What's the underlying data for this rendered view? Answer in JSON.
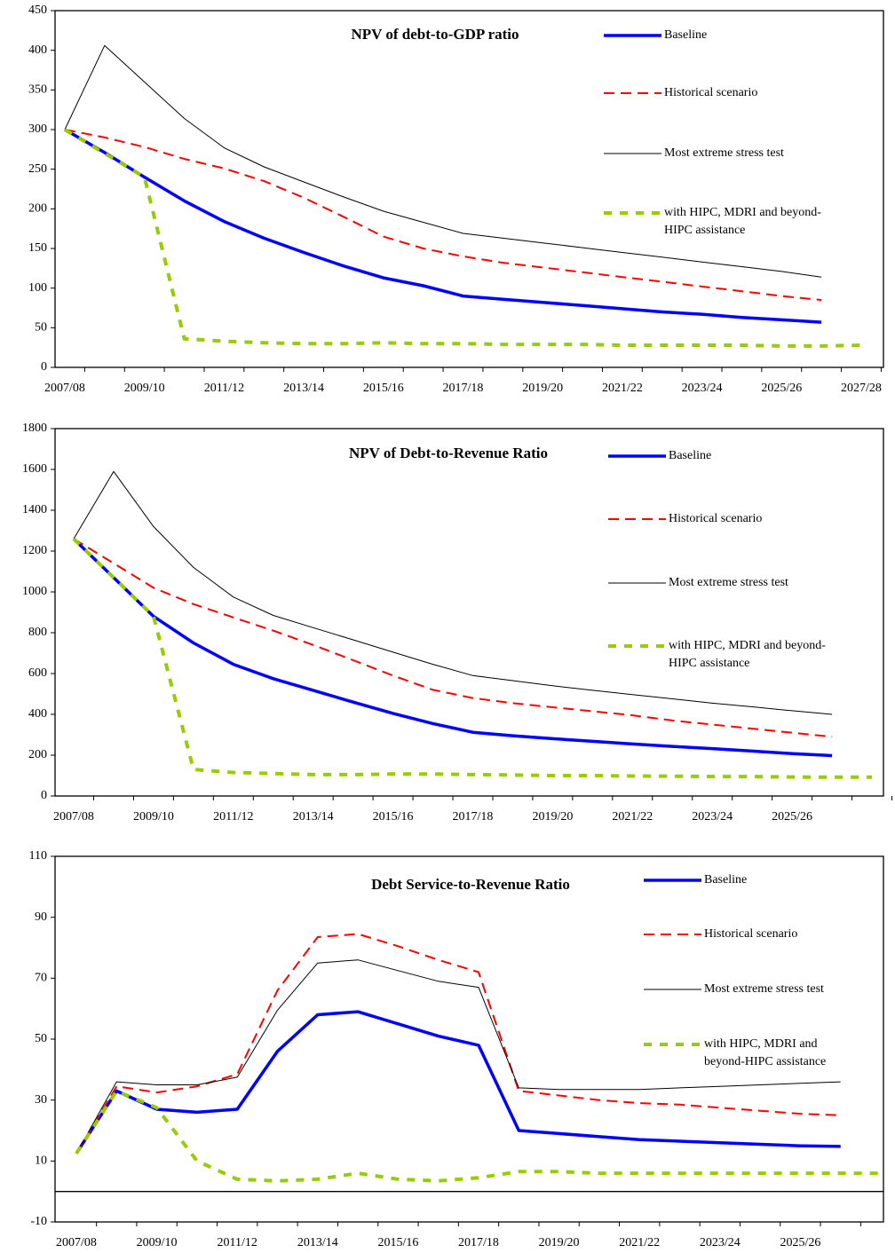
{
  "chart_data": [
    {
      "type": "line",
      "title": "NPV of debt-to-GDP ratio",
      "categories": [
        "2007/08",
        null,
        "2009/10",
        null,
        "2011/12",
        null,
        "2013/14",
        null,
        "2015/16",
        null,
        "2017/18",
        null,
        "2019/20",
        null,
        "2021/22",
        null,
        "2023/24",
        null,
        "2025/26",
        null,
        "2027/28"
      ],
      "ylim": [
        0,
        450
      ],
      "yticks": [
        0,
        50,
        100,
        150,
        200,
        250,
        300,
        350,
        400,
        450
      ],
      "series": [
        {
          "name": "Baseline",
          "color": "#0000ff",
          "style": "thick",
          "values": [
            300,
            271,
            240,
            210,
            184,
            163,
            145,
            128,
            113,
            103,
            90,
            86,
            82,
            78,
            74,
            70,
            67,
            63,
            60,
            57,
            null
          ]
        },
        {
          "name": "Historical scenario",
          "color": "#ff0000",
          "style": "dashed",
          "values": [
            300,
            290,
            278,
            263,
            251,
            235,
            214,
            190,
            165,
            150,
            140,
            132,
            126,
            120,
            114,
            108,
            102,
            96,
            90,
            85,
            null
          ]
        },
        {
          "name": "Most extreme stress test",
          "color": "#000000",
          "style": "thin",
          "values": [
            300,
            406,
            360,
            314,
            277,
            253,
            234,
            215,
            197,
            183,
            169,
            163,
            157,
            151,
            145,
            139,
            133,
            127,
            121,
            114,
            null
          ]
        },
        {
          "name": "with HIPC, MDRI and beyond-\nHIPC assistance",
          "color": "#99cc00",
          "style": "dotted",
          "values": [
            300,
            270,
            240,
            36,
            33,
            31,
            30,
            30,
            31,
            30,
            30,
            29,
            29,
            29,
            28,
            28,
            28,
            28,
            27,
            27,
            28
          ]
        }
      ]
    },
    {
      "type": "line",
      "title": "NPV of Debt-to-Revenue Ratio",
      "categories": [
        "2007/08",
        null,
        "2009/10",
        null,
        "2011/12",
        null,
        "2013/14",
        null,
        "2015/16",
        null,
        "2017/18",
        null,
        "2019/20",
        null,
        "2021/22",
        null,
        "2023/24",
        null,
        "2025/26",
        null,
        null
      ],
      "ylim": [
        0,
        1800
      ],
      "yticks": [
        0,
        200,
        400,
        600,
        800,
        1000,
        1200,
        1400,
        1600,
        1800
      ],
      "series": [
        {
          "name": "Baseline",
          "color": "#0000ff",
          "style": "thick",
          "values": [
            1260,
            1070,
            880,
            750,
            645,
            575,
            518,
            460,
            405,
            355,
            312,
            295,
            281,
            268,
            255,
            243,
            232,
            220,
            208,
            198,
            null
          ]
        },
        {
          "name": "Historical scenario",
          "color": "#ff0000",
          "style": "dashed",
          "values": [
            1260,
            1140,
            1020,
            940,
            875,
            810,
            740,
            665,
            590,
            520,
            480,
            455,
            435,
            415,
            395,
            370,
            350,
            330,
            310,
            290,
            null
          ]
        },
        {
          "name": "Most extreme stress test",
          "color": "#000000",
          "style": "thin",
          "values": [
            1260,
            1590,
            1320,
            1120,
            975,
            885,
            825,
            765,
            705,
            645,
            590,
            565,
            540,
            518,
            497,
            476,
            455,
            437,
            418,
            400,
            null
          ]
        },
        {
          "name": "with HIPC, MDRI and beyond-\nHIPC assistance",
          "color": "#99cc00",
          "style": "dotted",
          "values": [
            1260,
            1070,
            880,
            130,
            115,
            110,
            105,
            105,
            108,
            108,
            105,
            103,
            100,
            100,
            98,
            97,
            95,
            95,
            93,
            92,
            92
          ]
        }
      ]
    },
    {
      "type": "line",
      "title": "Debt Service-to-Revenue Ratio",
      "categories": [
        "2007/08",
        null,
        "2009/10",
        null,
        "2011/12",
        null,
        "2013/14",
        null,
        "2015/16",
        null,
        "2017/18",
        null,
        "2019/20",
        null,
        "2021/22",
        null,
        "2023/24",
        null,
        "2025/26",
        null,
        null
      ],
      "ylim": [
        -10,
        110
      ],
      "yticks": [
        -10,
        10,
        30,
        50,
        70,
        90,
        110
      ],
      "series": [
        {
          "name": "Baseline",
          "color": "#0000ff",
          "style": "thick",
          "values": [
            12.5,
            33,
            27,
            26,
            27,
            46,
            58,
            59,
            55,
            51,
            48,
            20,
            19,
            18,
            17,
            16.5,
            16,
            15.5,
            15,
            14.8,
            null
          ]
        },
        {
          "name": "Historical scenario",
          "color": "#ff0000",
          "style": "dashed",
          "values": [
            12.5,
            34.5,
            32.5,
            34.5,
            38.5,
            66,
            83.5,
            84.5,
            80.5,
            76,
            72,
            33,
            31.5,
            30,
            29,
            28.5,
            27.5,
            26.5,
            25.5,
            25,
            null
          ]
        },
        {
          "name": "Most extreme stress test",
          "color": "#000000",
          "style": "thin",
          "values": [
            12.5,
            36,
            35,
            35,
            37.5,
            59.5,
            75,
            76,
            72.5,
            69,
            67,
            34,
            33.5,
            33.5,
            33.5,
            34,
            34.5,
            35,
            35.5,
            36,
            null
          ]
        },
        {
          "name": "with HIPC, MDRI and\nbeyond-HIPC assistance",
          "color": "#99cc00",
          "style": "dotted",
          "values": [
            12.5,
            33,
            27.5,
            10,
            4,
            3.5,
            4,
            6,
            4,
            3.5,
            4.5,
            6.5,
            6.5,
            6,
            6,
            6,
            6,
            6,
            6,
            6,
            6
          ]
        }
      ]
    }
  ]
}
